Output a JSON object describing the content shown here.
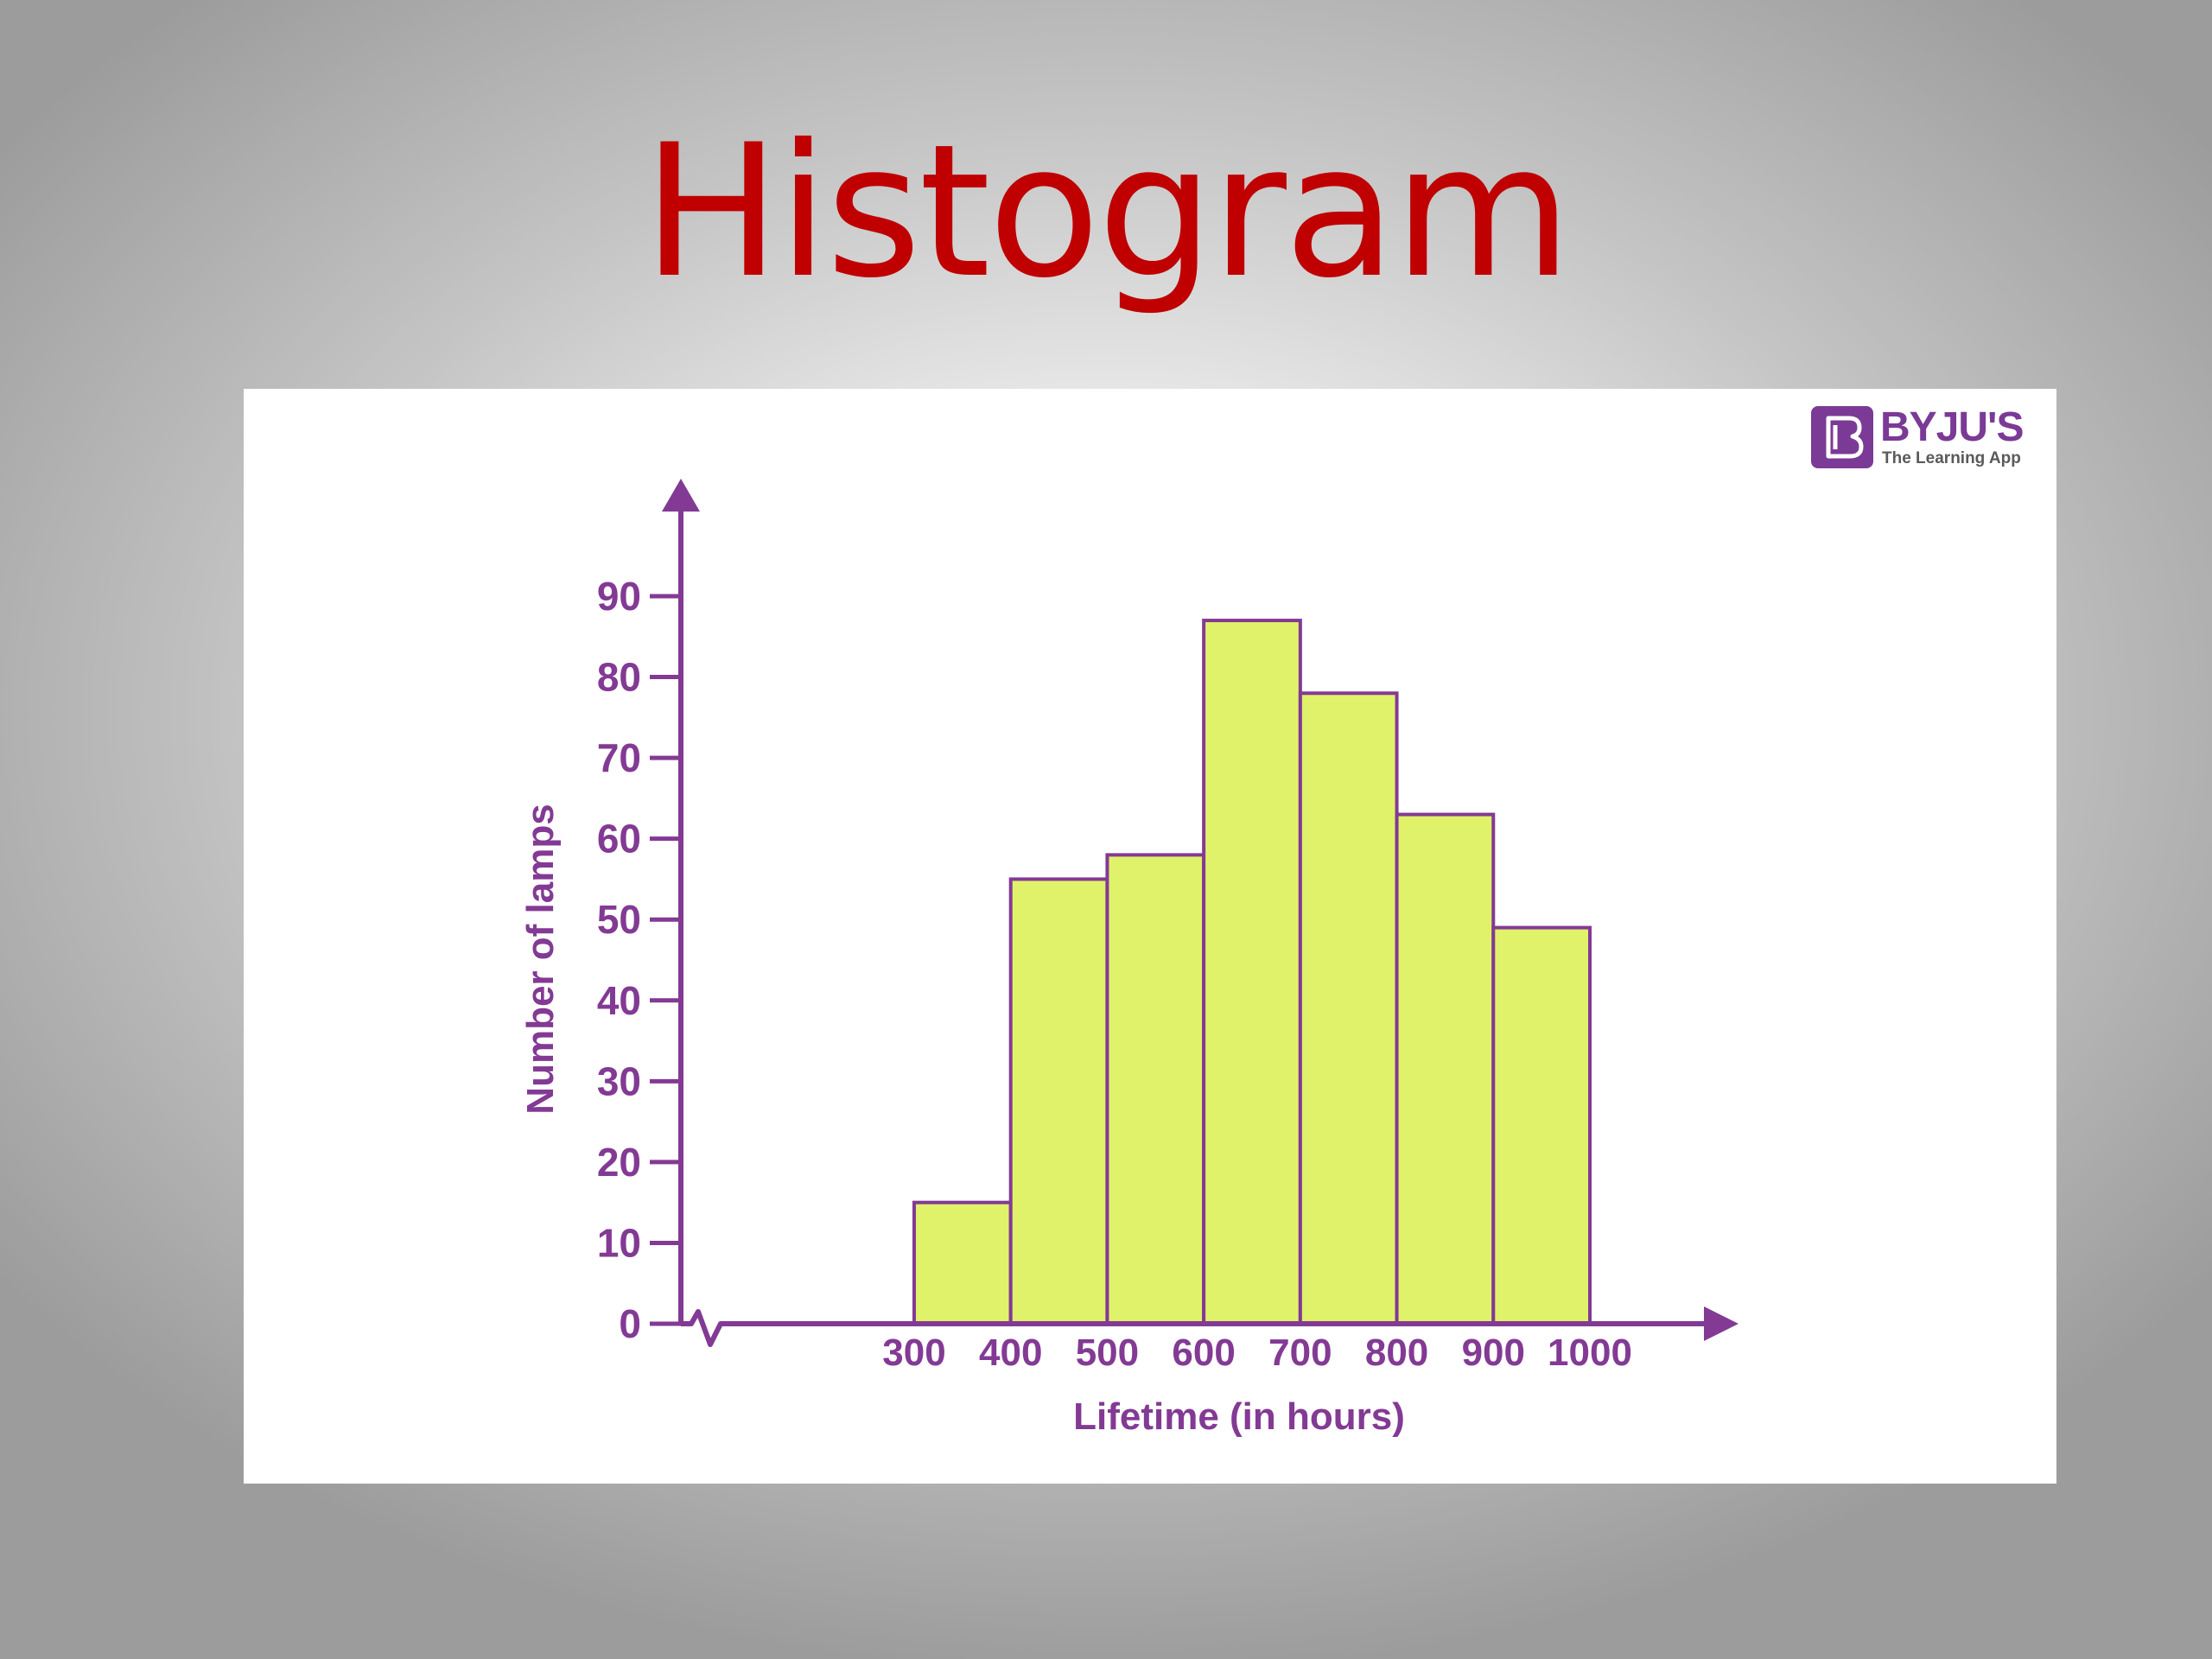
{
  "slide": {
    "title": "Histogram",
    "title_color": "#c00000"
  },
  "logo": {
    "name": "BYJU'S",
    "tagline": "The Learning App",
    "color": "#7b3a96"
  },
  "theme": {
    "axis_color": "#833a94",
    "bar_fill": "#e0f26a",
    "bar_stroke": "#833a94"
  },
  "chart_data": {
    "type": "bar",
    "histogram": true,
    "title": "",
    "xlabel": "Lifetime (in hours)",
    "ylabel": "Number of lamps",
    "x_ticks": [
      "300",
      "400",
      "500",
      "600",
      "700",
      "800",
      "900",
      "1000"
    ],
    "y_ticks": [
      "0",
      "10",
      "20",
      "30",
      "40",
      "50",
      "60",
      "70",
      "80",
      "90"
    ],
    "ylim": [
      0,
      90
    ],
    "x_axis_break": true,
    "bins": [
      {
        "from": 300,
        "to": 400,
        "value": 15
      },
      {
        "from": 400,
        "to": 500,
        "value": 55
      },
      {
        "from": 500,
        "to": 600,
        "value": 58
      },
      {
        "from": 600,
        "to": 700,
        "value": 87
      },
      {
        "from": 700,
        "to": 800,
        "value": 78
      },
      {
        "from": 800,
        "to": 900,
        "value": 63
      },
      {
        "from": 900,
        "to": 1000,
        "value": 49
      }
    ]
  }
}
